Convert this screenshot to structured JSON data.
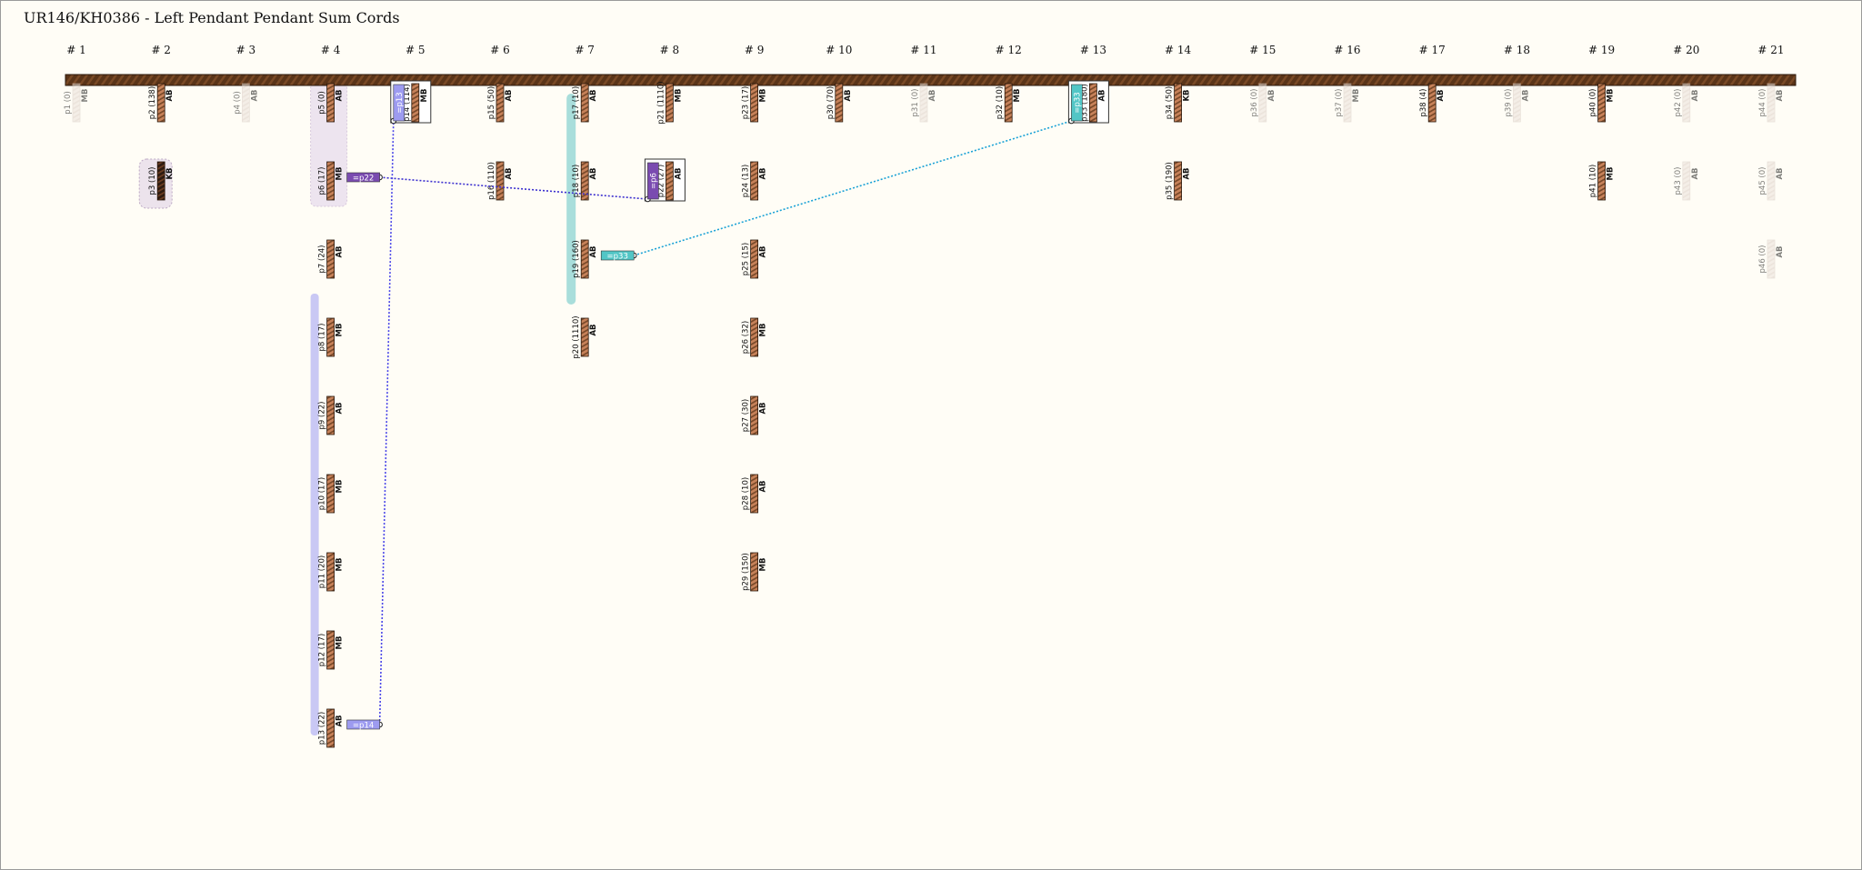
{
  "title": "UR146/KH0386 - Left Pendant Pendant Sum Cords",
  "colors": {
    "background": "#fffdf6",
    "main_cord": "#5a3418",
    "cord_stripe": "#c7825a",
    "cord_dark": "#3b2214",
    "faded": "#e3d7cf",
    "purple_link": "#3b2fcf",
    "purple_badge": "#7a4bb0",
    "lavender_badge": "#9d9bf0",
    "teal_badge": "#52c6c6",
    "teal_link": "#1aa2d6"
  },
  "columns": [
    "# 1",
    "# 2",
    "# 3",
    "# 4",
    "# 5",
    "# 6",
    "# 7",
    "# 8",
    "# 9",
    "# 10",
    "# 11",
    "# 12",
    "# 13",
    "# 14",
    "# 15",
    "# 16",
    "# 17",
    "# 18",
    "# 19",
    "# 20",
    "# 21"
  ],
  "cords": [
    {
      "id": "p1",
      "label": "p1 (0)",
      "color": "MB",
      "col": 1,
      "row": 1,
      "faded": true
    },
    {
      "id": "p2",
      "label": "p2 (138)",
      "color": "AB",
      "col": 2,
      "row": 1
    },
    {
      "id": "p3",
      "label": "p3 (10)",
      "color": "KB",
      "col": 2,
      "row": 2,
      "dark": true
    },
    {
      "id": "p4",
      "label": "p4 (0)",
      "color": "AB",
      "col": 3,
      "row": 1,
      "faded": true
    },
    {
      "id": "p5",
      "label": "p5 (0)",
      "color": "AB",
      "col": 4,
      "row": 1
    },
    {
      "id": "p6",
      "label": "p6 (17)",
      "color": "MB",
      "col": 4,
      "row": 2
    },
    {
      "id": "p7",
      "label": "p7 (24)",
      "color": "AB",
      "col": 4,
      "row": 3
    },
    {
      "id": "p8",
      "label": "p8 (17)",
      "color": "MB",
      "col": 4,
      "row": 4
    },
    {
      "id": "p9",
      "label": "p9 (22)",
      "color": "AB",
      "col": 4,
      "row": 5
    },
    {
      "id": "p10",
      "label": "p10 (17)",
      "color": "MB",
      "col": 4,
      "row": 6
    },
    {
      "id": "p11",
      "label": "p11 (20)",
      "color": "MB",
      "col": 4,
      "row": 7
    },
    {
      "id": "p12",
      "label": "p12 (17)",
      "color": "MB",
      "col": 4,
      "row": 8
    },
    {
      "id": "p13",
      "label": "p13 (22)",
      "color": "AB",
      "col": 4,
      "row": 9
    },
    {
      "id": "p14",
      "label": "p14 (114)",
      "color": "MB",
      "col": 5,
      "row": 1,
      "boxed": true
    },
    {
      "id": "p15",
      "label": "p15 (50)",
      "color": "AB",
      "col": 6,
      "row": 1
    },
    {
      "id": "p16",
      "label": "p16 (110)",
      "color": "AB",
      "col": 6,
      "row": 2
    },
    {
      "id": "p17",
      "label": "p17 (10)",
      "color": "AB",
      "col": 7,
      "row": 1
    },
    {
      "id": "p18",
      "label": "p18 (10)",
      "color": "AB",
      "col": 7,
      "row": 2
    },
    {
      "id": "p19",
      "label": "p19 (160)",
      "color": "AB",
      "col": 7,
      "row": 3
    },
    {
      "id": "p20",
      "label": "p20 (1110)",
      "color": "AB",
      "col": 7,
      "row": 4
    },
    {
      "id": "p21",
      "label": "p21 (1110)",
      "color": "MB",
      "col": 8,
      "row": 1
    },
    {
      "id": "p22",
      "label": "p22 (27)",
      "color": "AB",
      "col": 8,
      "row": 2,
      "boxed": true
    },
    {
      "id": "p23",
      "label": "p23 (17)",
      "color": "MB",
      "col": 9,
      "row": 1
    },
    {
      "id": "p24",
      "label": "p24 (13)",
      "color": "AB",
      "col": 9,
      "row": 2
    },
    {
      "id": "p25",
      "label": "p25 (15)",
      "color": "AB",
      "col": 9,
      "row": 3
    },
    {
      "id": "p26",
      "label": "p26 (32)",
      "color": "MB",
      "col": 9,
      "row": 4
    },
    {
      "id": "p27",
      "label": "p27 (30)",
      "color": "AB",
      "col": 9,
      "row": 5
    },
    {
      "id": "p28",
      "label": "p28 (10)",
      "color": "AB",
      "col": 9,
      "row": 6
    },
    {
      "id": "p29",
      "label": "p29 (150)",
      "color": "MB",
      "col": 9,
      "row": 7
    },
    {
      "id": "p30",
      "label": "p30 (70)",
      "color": "AB",
      "col": 10,
      "row": 1
    },
    {
      "id": "p31",
      "label": "p31 (0)",
      "color": "AB",
      "col": 11,
      "row": 1,
      "faded": true
    },
    {
      "id": "p32",
      "label": "p32 (10)",
      "color": "MB",
      "col": 12,
      "row": 1
    },
    {
      "id": "p33",
      "label": "p33 (180)",
      "color": "AB",
      "col": 13,
      "row": 1,
      "boxed": true
    },
    {
      "id": "p34",
      "label": "p34 (50)",
      "color": "KB",
      "col": 14,
      "row": 1
    },
    {
      "id": "p35",
      "label": "p35 (190)",
      "color": "AB",
      "col": 14,
      "row": 2
    },
    {
      "id": "p36",
      "label": "p36 (0)",
      "color": "AB",
      "col": 15,
      "row": 1,
      "faded": true
    },
    {
      "id": "p37",
      "label": "p37 (0)",
      "color": "MB",
      "col": 16,
      "row": 1,
      "faded": true
    },
    {
      "id": "p38",
      "label": "p38 (4)",
      "color": "AB",
      "col": 17,
      "row": 1
    },
    {
      "id": "p39",
      "label": "p39 (0)",
      "color": "AB",
      "col": 18,
      "row": 1,
      "faded": true
    },
    {
      "id": "p40",
      "label": "p40 (0)",
      "color": "MB",
      "col": 19,
      "row": 1
    },
    {
      "id": "p41",
      "label": "p41 (10)",
      "color": "MB",
      "col": 19,
      "row": 2
    },
    {
      "id": "p42",
      "label": "p42 (0)",
      "color": "AB",
      "col": 20,
      "row": 1,
      "faded": true
    },
    {
      "id": "p43",
      "label": "p43 (0)",
      "color": "AB",
      "col": 20,
      "row": 2,
      "faded": true
    },
    {
      "id": "p44",
      "label": "p44 (0)",
      "color": "AB",
      "col": 21,
      "row": 1,
      "faded": true
    },
    {
      "id": "p45",
      "label": "p45 (0)",
      "color": "AB",
      "col": 21,
      "row": 2,
      "faded": true
    },
    {
      "id": "p46",
      "label": "p46 (0)",
      "color": "AB",
      "col": 21,
      "row": 3,
      "faded": true
    }
  ],
  "knot_badges": [
    {
      "id": "badge-p13",
      "label": "=p13",
      "anchor": "p14",
      "style": "lavender"
    },
    {
      "id": "badge-p6",
      "label": "=p6",
      "anchor": "p22",
      "style": "purple"
    },
    {
      "id": "badge-p33",
      "label": "=p33",
      "anchor": "p33",
      "style": "teal"
    },
    {
      "id": "badge-p22",
      "label": "=p22",
      "near": "p6",
      "style": "purple"
    },
    {
      "id": "badge-p14",
      "label": "=p14",
      "near": "p13",
      "style": "lavender"
    },
    {
      "id": "badge-p33b",
      "label": "=p33",
      "near": "p19",
      "style": "teal"
    }
  ],
  "links": [
    {
      "from": "badge-p22",
      "to": "badge-p6",
      "style": "purple"
    },
    {
      "from": "badge-p14",
      "to": "badge-p13",
      "style": "lavender"
    },
    {
      "from": "badge-p33b",
      "to": "badge-p33",
      "style": "teal"
    }
  ]
}
